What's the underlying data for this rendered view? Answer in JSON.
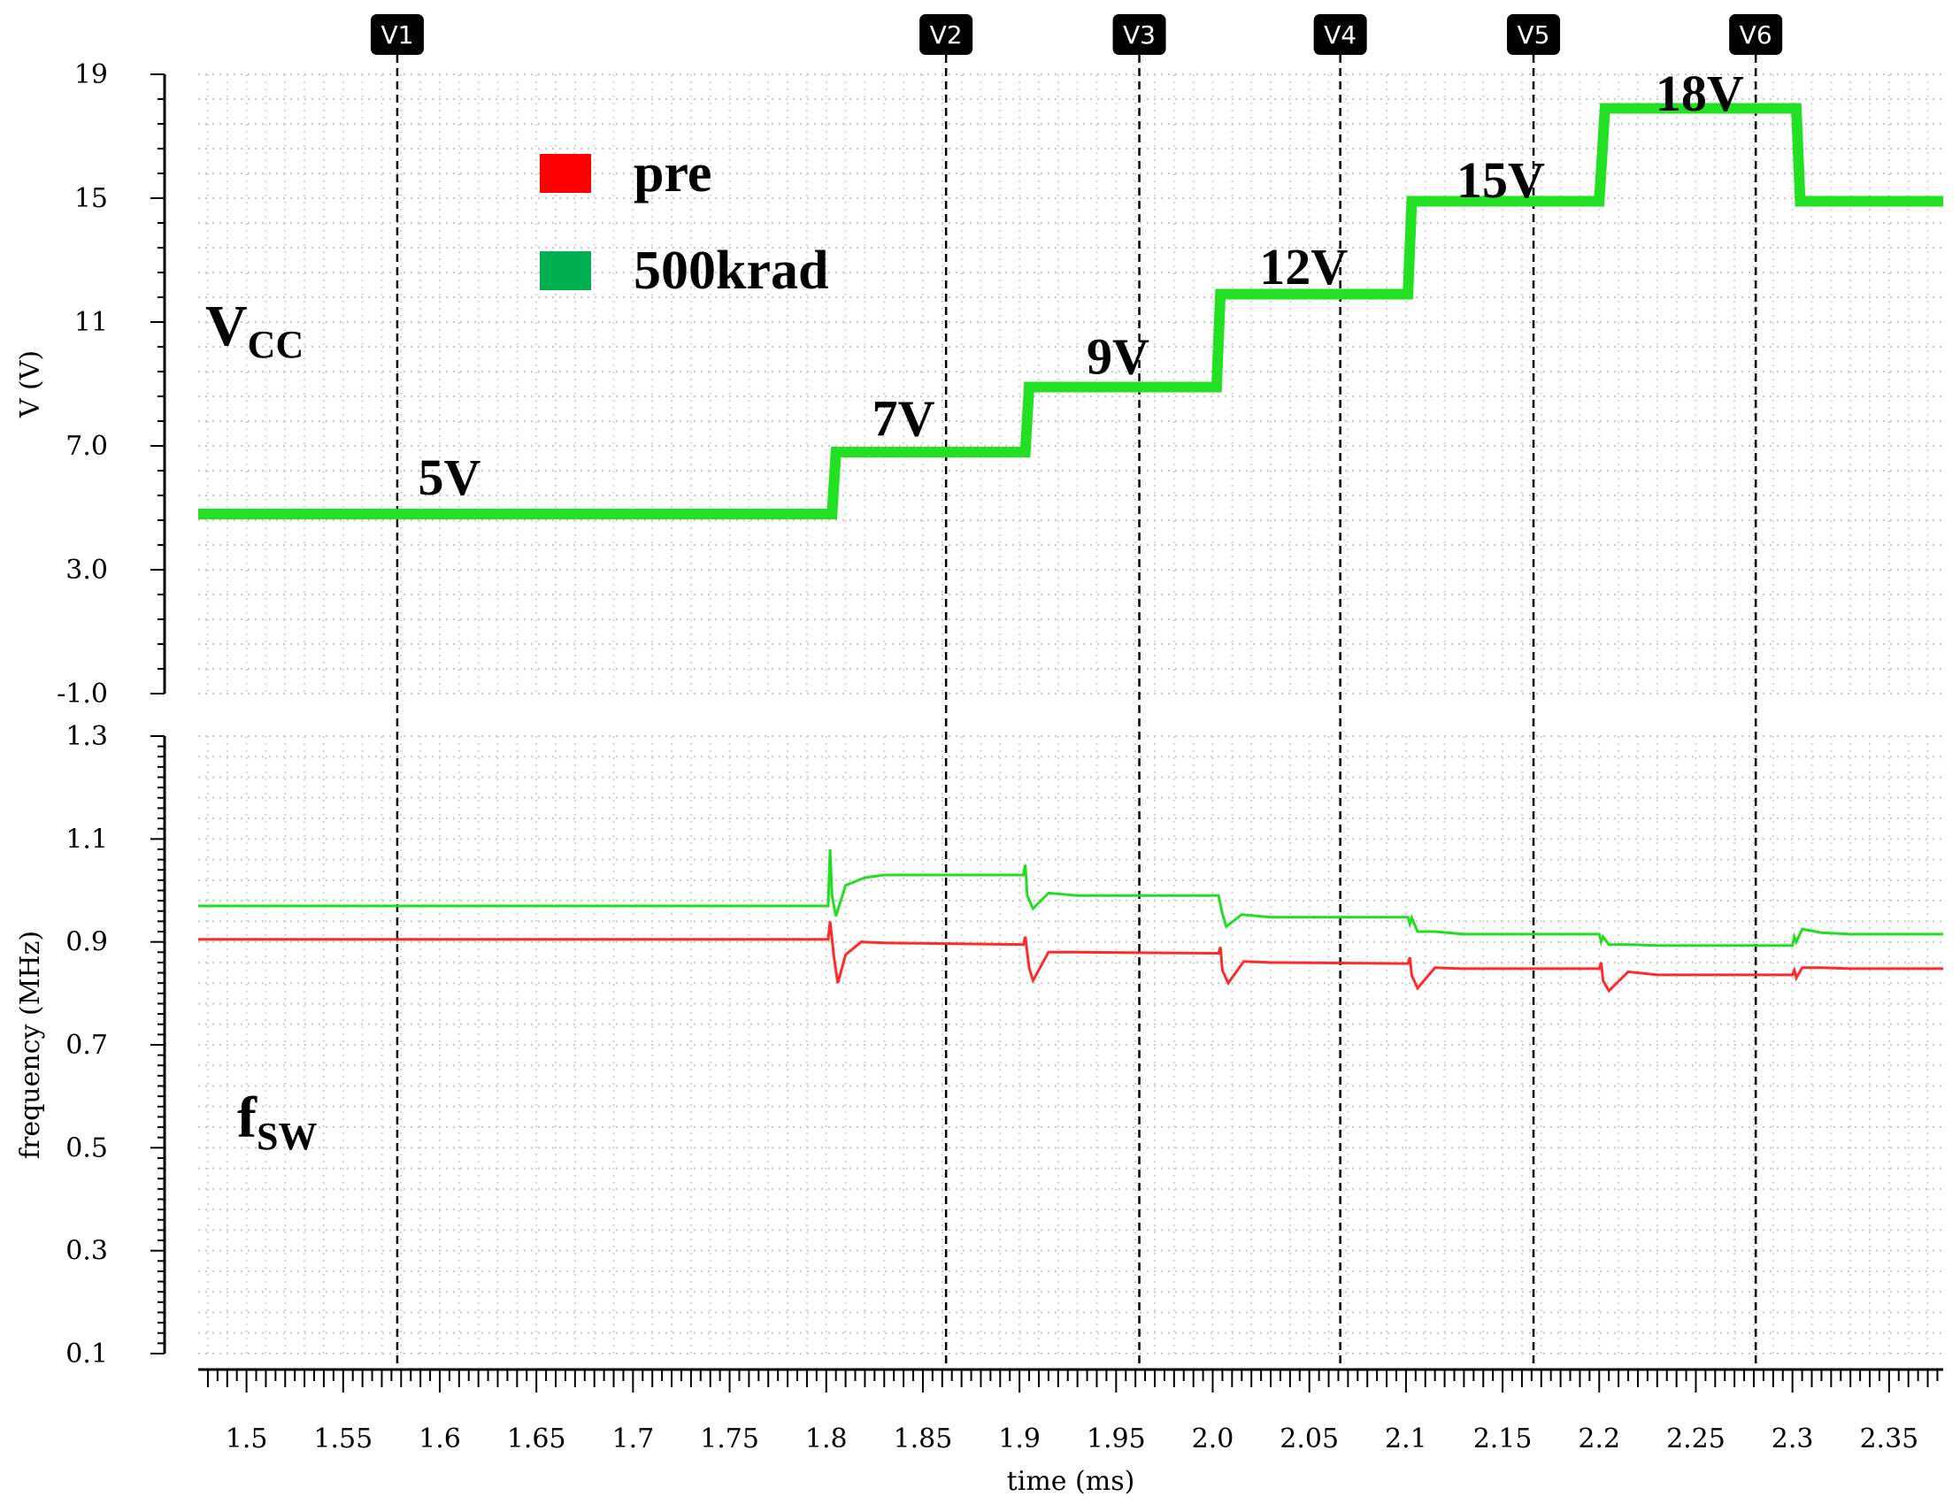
{
  "chart_data": {
    "type": "line",
    "xlabel": "time (ms)",
    "x_ticks": [
      "1.5",
      "1.55",
      "1.6",
      "1.65",
      "1.7",
      "1.75",
      "1.8",
      "1.85",
      "1.9",
      "1.95",
      "2.0",
      "2.05",
      "2.1",
      "2.15",
      "2.2",
      "2.25",
      "2.3",
      "2.35"
    ],
    "xlim": [
      1.475,
      2.378
    ],
    "legend": {
      "placement": "top-center",
      "entries": [
        {
          "name": "pre",
          "color": "#ff0000"
        },
        {
          "name": "500krad",
          "color": "#00b050"
        }
      ]
    },
    "markers": [
      {
        "label": "V1",
        "x": 1.578
      },
      {
        "label": "V2",
        "x": 1.862
      },
      {
        "label": "V3",
        "x": 1.962
      },
      {
        "label": "V4",
        "x": 2.066
      },
      {
        "label": "V5",
        "x": 2.166
      },
      {
        "label": "V6",
        "x": 2.281
      }
    ],
    "panels": [
      {
        "id": "vcc",
        "ylabel": "V (V)",
        "ylim": [
          -1.0,
          19
        ],
        "y_ticks": [
          "19",
          "15",
          "11",
          "7.0",
          "3.0",
          "-1.0"
        ],
        "signal_label": {
          "main": "V",
          "sub": "CC"
        },
        "series": [
          {
            "name": "500krad",
            "color": "#22e022",
            "x": [
              1.475,
              1.803,
              1.805,
              1.903,
              1.905,
              2.002,
              2.004,
              2.101,
              2.103,
              2.2,
              2.203,
              2.302,
              2.304,
              2.378
            ],
            "y": [
              4.8,
              4.8,
              6.8,
              6.8,
              8.9,
              8.9,
              11.9,
              11.9,
              14.9,
              14.9,
              17.9,
              17.9,
              14.9,
              14.9
            ]
          }
        ],
        "step_labels": [
          {
            "text": "5V",
            "x": 1.605,
            "y": 6.0
          },
          {
            "text": "7V",
            "x": 1.84,
            "y": 7.9
          },
          {
            "text": "9V",
            "x": 1.951,
            "y": 9.9
          },
          {
            "text": "12V",
            "x": 2.047,
            "y": 12.8
          },
          {
            "text": "15V",
            "x": 2.149,
            "y": 15.6
          },
          {
            "text": "18V",
            "x": 2.252,
            "y": 18.4
          }
        ]
      },
      {
        "id": "fsw",
        "ylabel": "frequency (MHz)",
        "ylim": [
          0.1,
          1.3
        ],
        "y_ticks": [
          "1.3",
          "1.1",
          "0.9",
          "0.7",
          "0.5",
          "0.3",
          "0.1"
        ],
        "signal_label": {
          "main": "f",
          "sub": "SW"
        },
        "series": [
          {
            "name": "500krad",
            "color": "#22dd22",
            "x": [
              1.475,
              1.801,
              1.802,
              1.803,
              1.805,
              1.81,
              1.82,
              1.83,
              1.85,
              1.902,
              1.903,
              1.904,
              1.907,
              1.915,
              1.93,
              2.003,
              2.005,
              2.007,
              2.015,
              2.03,
              2.101,
              2.102,
              2.103,
              2.106,
              2.115,
              2.13,
              2.2,
              2.201,
              2.202,
              2.205,
              2.215,
              2.23,
              2.3,
              2.301,
              2.302,
              2.305,
              2.315,
              2.33,
              2.378
            ],
            "y": [
              0.97,
              0.97,
              1.08,
              0.99,
              0.95,
              1.01,
              1.025,
              1.03,
              1.03,
              1.03,
              1.05,
              0.99,
              0.965,
              0.995,
              0.99,
              0.99,
              0.955,
              0.93,
              0.953,
              0.948,
              0.948,
              0.935,
              0.947,
              0.92,
              0.92,
              0.915,
              0.915,
              0.9,
              0.91,
              0.895,
              0.895,
              0.893,
              0.893,
              0.91,
              0.9,
              0.925,
              0.918,
              0.915,
              0.915
            ]
          },
          {
            "name": "pre",
            "color": "#ff2a2a",
            "x": [
              1.475,
              1.801,
              1.802,
              1.804,
              1.806,
              1.81,
              1.818,
              1.83,
              1.902,
              1.903,
              1.905,
              1.907,
              1.915,
              1.93,
              2.003,
              2.004,
              2.005,
              2.008,
              2.016,
              2.03,
              2.101,
              2.102,
              2.103,
              2.106,
              2.115,
              2.13,
              2.2,
              2.201,
              2.202,
              2.205,
              2.215,
              2.23,
              2.3,
              2.301,
              2.302,
              2.305,
              2.315,
              2.33,
              2.378
            ],
            "y": [
              0.905,
              0.905,
              0.94,
              0.87,
              0.82,
              0.875,
              0.9,
              0.898,
              0.895,
              0.91,
              0.85,
              0.825,
              0.88,
              0.88,
              0.878,
              0.89,
              0.845,
              0.82,
              0.862,
              0.86,
              0.858,
              0.87,
              0.835,
              0.81,
              0.85,
              0.848,
              0.848,
              0.86,
              0.825,
              0.805,
              0.842,
              0.836,
              0.836,
              0.845,
              0.83,
              0.85,
              0.85,
              0.848,
              0.848
            ]
          }
        ]
      }
    ]
  }
}
